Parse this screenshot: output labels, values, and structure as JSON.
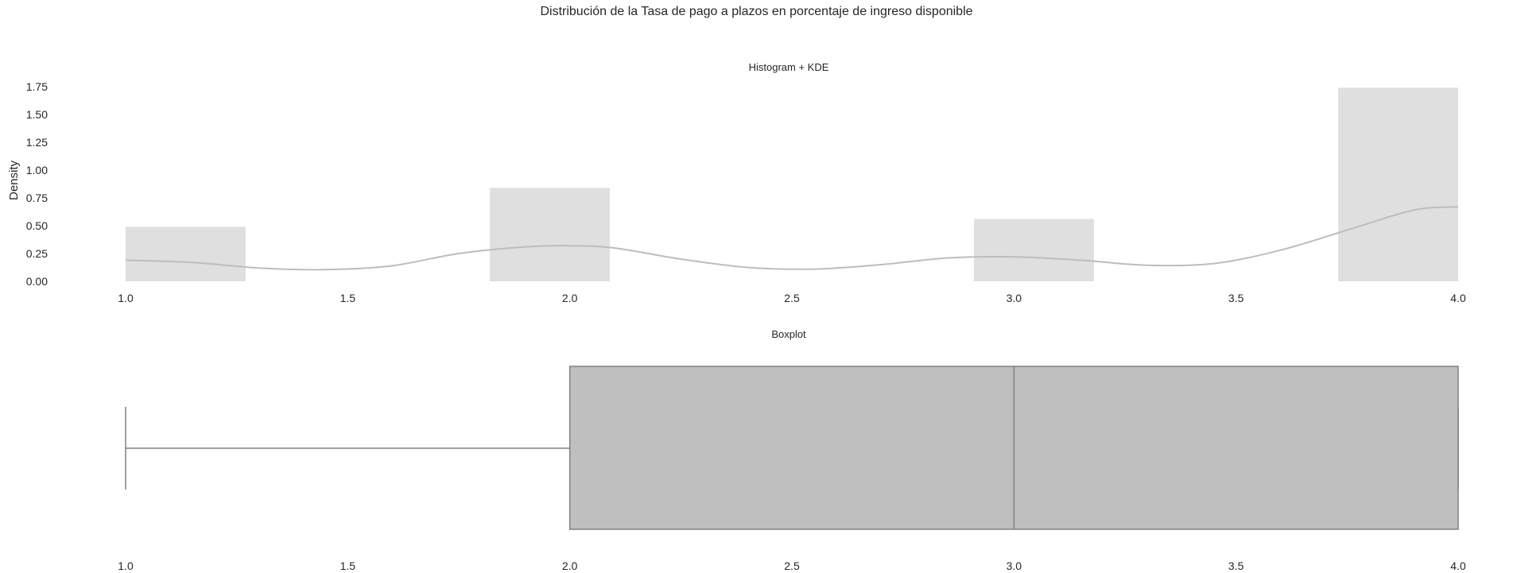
{
  "figure": {
    "suptitle": "Distribución de la Tasa de pago a plazos en porcentaje de ingreso disponible"
  },
  "chart_data": [
    {
      "type": "bar",
      "subtype": "histogram_with_kde",
      "title": "Histogram + KDE",
      "xlabel": "",
      "ylabel": "Density",
      "xlim": [
        1.0,
        4.0
      ],
      "ylim": [
        0,
        1.75
      ],
      "x_ticks": [
        "1.0",
        "1.5",
        "2.0",
        "2.5",
        "3.0",
        "3.5",
        "4.0"
      ],
      "y_ticks": [
        "0.00",
        "0.25",
        "0.50",
        "0.75",
        "1.00",
        "1.25",
        "1.50",
        "1.75"
      ],
      "grid": false,
      "bin_width": 0.27,
      "bins": [
        {
          "x0": 1.0,
          "x1": 1.27,
          "density": 0.49
        },
        {
          "x0": 1.82,
          "x1": 2.09,
          "density": 0.84
        },
        {
          "x0": 2.91,
          "x1": 3.18,
          "density": 0.56
        },
        {
          "x0": 3.73,
          "x1": 4.0,
          "density": 1.74
        }
      ],
      "kde": {
        "x": [
          1.0,
          1.15,
          1.3,
          1.45,
          1.6,
          1.75,
          1.9,
          2.0,
          2.1,
          2.25,
          2.4,
          2.55,
          2.7,
          2.85,
          3.0,
          3.15,
          3.3,
          3.45,
          3.6,
          3.75,
          3.9,
          4.0
        ],
        "y": [
          0.19,
          0.17,
          0.12,
          0.105,
          0.14,
          0.25,
          0.31,
          0.32,
          0.3,
          0.2,
          0.125,
          0.11,
          0.15,
          0.21,
          0.22,
          0.19,
          0.145,
          0.16,
          0.28,
          0.46,
          0.64,
          0.67
        ]
      },
      "colors": {
        "bar": "#dfdfdf",
        "kde": "#bdbdbd"
      }
    },
    {
      "type": "boxplot",
      "title": "Boxplot",
      "xlabel": "",
      "xlim": [
        1.0,
        4.0
      ],
      "x_ticks": [
        "1.0",
        "1.5",
        "2.0",
        "2.5",
        "3.0",
        "3.5",
        "4.0"
      ],
      "grid": false,
      "stats": {
        "whisker_low": 1.0,
        "q1": 2.0,
        "median": 3.0,
        "q3": 4.0,
        "whisker_high": 4.0
      },
      "colors": {
        "box": "#bfbfbf",
        "line": "#808080"
      }
    }
  ]
}
